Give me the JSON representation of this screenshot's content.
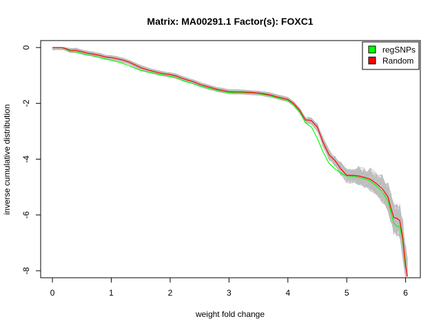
{
  "chart_data": {
    "type": "line",
    "title": "Matrix: MA00291.1 Factor(s): FOXC1",
    "xlabel": "weight fold change",
    "ylabel": "inverse cumulative distribution",
    "xlim": [
      -0.2,
      6.25
    ],
    "ylim": [
      -8.25,
      0.25
    ],
    "x_ticks": [
      "0",
      "1",
      "2",
      "3",
      "4",
      "5",
      "6"
    ],
    "y_ticks": [
      "0",
      "-2",
      "-4",
      "-6",
      "-8"
    ],
    "legend_position": "top-right",
    "grid": false,
    "background_series_color": "#bdbdbd",
    "series": [
      {
        "name": "regSNPs",
        "color": "#00ff00",
        "x": [
          0.0,
          0.15,
          0.2,
          0.3,
          0.4,
          0.5,
          0.6,
          0.7,
          0.8,
          0.9,
          1.0,
          1.1,
          1.2,
          1.3,
          1.4,
          1.5,
          1.6,
          1.7,
          1.8,
          1.9,
          2.0,
          2.1,
          2.2,
          2.3,
          2.4,
          2.5,
          2.6,
          2.7,
          2.8,
          2.9,
          3.0,
          3.1,
          3.2,
          3.3,
          3.4,
          3.5,
          3.6,
          3.7,
          3.8,
          3.9,
          4.0,
          4.1,
          4.2,
          4.3,
          4.35,
          4.4,
          4.5,
          4.6,
          4.7,
          4.8,
          4.9,
          5.0,
          5.05,
          5.1,
          5.2,
          5.3,
          5.4,
          5.5,
          5.6,
          5.7,
          5.75,
          5.8,
          5.85,
          5.9,
          5.95,
          6.0
        ],
        "y": [
          0.0,
          0.0,
          -0.03,
          -0.14,
          -0.15,
          -0.21,
          -0.26,
          -0.3,
          -0.36,
          -0.41,
          -0.46,
          -0.51,
          -0.57,
          -0.65,
          -0.74,
          -0.82,
          -0.87,
          -0.91,
          -0.96,
          -0.99,
          -1.04,
          -1.08,
          -1.17,
          -1.24,
          -1.3,
          -1.38,
          -1.43,
          -1.49,
          -1.54,
          -1.58,
          -1.61,
          -1.62,
          -1.62,
          -1.63,
          -1.63,
          -1.65,
          -1.69,
          -1.73,
          -1.79,
          -1.85,
          -1.9,
          -2.05,
          -2.3,
          -2.7,
          -2.78,
          -2.85,
          -3.25,
          -3.75,
          -4.15,
          -4.35,
          -4.5,
          -4.6,
          -4.6,
          -4.62,
          -4.65,
          -4.7,
          -4.78,
          -4.95,
          -5.15,
          -5.5,
          -5.9,
          -6.3,
          -6.4,
          -6.42,
          -6.9,
          -7.9
        ]
      },
      {
        "name": "Random",
        "color": "#ff0000",
        "x": [
          0.0,
          0.15,
          0.2,
          0.3,
          0.4,
          0.5,
          0.6,
          0.7,
          0.8,
          0.9,
          1.0,
          1.1,
          1.2,
          1.3,
          1.4,
          1.5,
          1.6,
          1.7,
          1.8,
          1.9,
          2.0,
          2.1,
          2.2,
          2.3,
          2.4,
          2.5,
          2.6,
          2.7,
          2.8,
          2.9,
          3.0,
          3.1,
          3.2,
          3.3,
          3.4,
          3.5,
          3.6,
          3.7,
          3.8,
          3.9,
          4.0,
          4.1,
          4.2,
          4.3,
          4.35,
          4.4,
          4.5,
          4.6,
          4.7,
          4.8,
          4.9,
          5.0,
          5.05,
          5.1,
          5.2,
          5.3,
          5.4,
          5.5,
          5.6,
          5.7,
          5.75,
          5.8,
          5.85,
          5.9,
          5.95,
          6.0,
          6.03
        ],
        "y": [
          0.0,
          0.0,
          -0.02,
          -0.1,
          -0.1,
          -0.15,
          -0.2,
          -0.24,
          -0.28,
          -0.34,
          -0.36,
          -0.4,
          -0.45,
          -0.52,
          -0.62,
          -0.72,
          -0.79,
          -0.85,
          -0.9,
          -0.94,
          -0.97,
          -1.02,
          -1.1,
          -1.17,
          -1.23,
          -1.32,
          -1.38,
          -1.44,
          -1.5,
          -1.54,
          -1.58,
          -1.59,
          -1.59,
          -1.6,
          -1.61,
          -1.63,
          -1.66,
          -1.7,
          -1.76,
          -1.81,
          -1.86,
          -2.01,
          -2.25,
          -2.6,
          -2.6,
          -2.62,
          -2.85,
          -3.4,
          -3.85,
          -4.05,
          -4.35,
          -4.58,
          -4.58,
          -4.58,
          -4.6,
          -4.65,
          -4.72,
          -4.87,
          -5.05,
          -5.35,
          -5.75,
          -6.1,
          -6.12,
          -6.2,
          -6.8,
          -7.8,
          -8.2
        ]
      }
    ]
  }
}
